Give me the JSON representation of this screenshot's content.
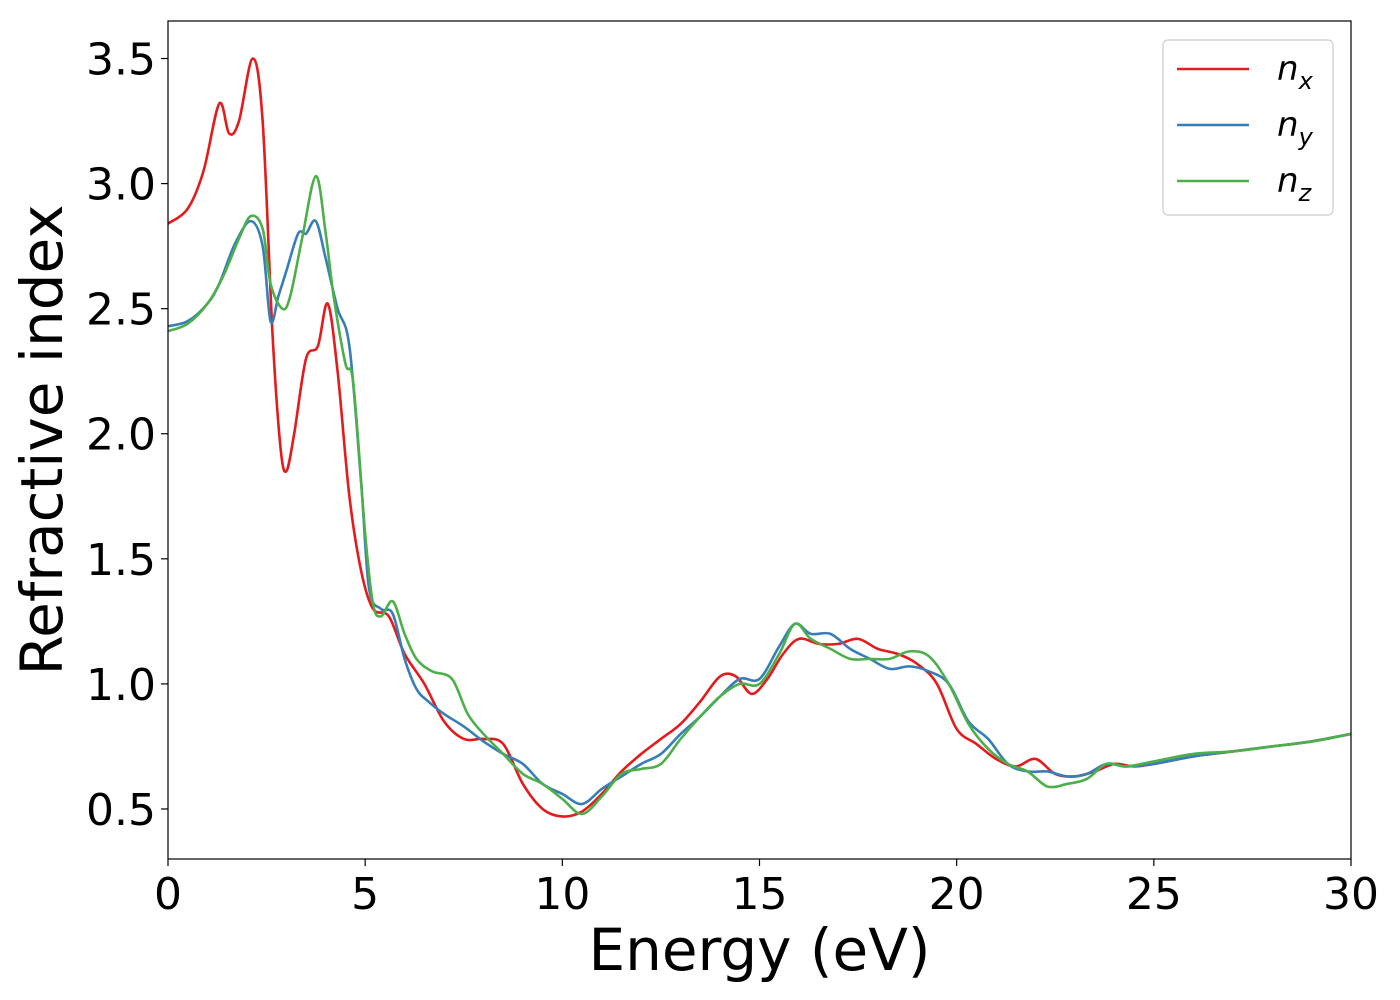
{
  "chart_data": {
    "type": "line",
    "title": "",
    "xlabel": "Energy (eV)",
    "ylabel": "Refractive index",
    "xlim": [
      0,
      30
    ],
    "ylim": [
      0.3,
      3.65
    ],
    "xticks": [
      0,
      5,
      10,
      15,
      20,
      25,
      30
    ],
    "xtick_labels": [
      "0",
      "5",
      "10",
      "15",
      "20",
      "25",
      "30"
    ],
    "yticks": [
      0.5,
      1.0,
      1.5,
      2.0,
      2.5,
      3.0,
      3.5
    ],
    "ytick_labels": [
      "0.5",
      "1.0",
      "1.5",
      "2.0",
      "2.5",
      "3.0",
      "3.5"
    ],
    "grid": false,
    "legend_position": "top-right",
    "series": [
      {
        "name": "n_x",
        "label_base": "n",
        "label_sub": "x",
        "color": "#e41a1c",
        "x": [
          0,
          0.5,
          0.9,
          1.3,
          1.55,
          1.8,
          2.15,
          2.4,
          2.65,
          2.85,
          3.0,
          3.2,
          3.5,
          3.8,
          4.05,
          4.3,
          4.6,
          4.9,
          5.2,
          5.6,
          6.0,
          6.5,
          7.0,
          7.5,
          8.0,
          8.5,
          9.0,
          9.5,
          10.0,
          10.5,
          11.0,
          11.5,
          12.0,
          12.5,
          13.0,
          13.5,
          14.0,
          14.4,
          14.8,
          15.2,
          15.6,
          16.0,
          16.5,
          17.0,
          17.5,
          18.0,
          18.5,
          19.0,
          19.5,
          20.0,
          20.5,
          21.0,
          21.5,
          22.0,
          22.5,
          23.0,
          23.5,
          24.0,
          24.5,
          25.0,
          26.0,
          27.0,
          28.0,
          29.0,
          30.0
        ],
        "y": [
          2.84,
          2.9,
          3.05,
          3.32,
          3.2,
          3.25,
          3.5,
          3.25,
          2.4,
          1.95,
          1.85,
          2.0,
          2.3,
          2.35,
          2.52,
          2.25,
          1.75,
          1.45,
          1.3,
          1.27,
          1.12,
          1.0,
          0.85,
          0.78,
          0.78,
          0.76,
          0.6,
          0.5,
          0.47,
          0.49,
          0.56,
          0.65,
          0.72,
          0.78,
          0.84,
          0.93,
          1.03,
          1.03,
          0.96,
          1.02,
          1.12,
          1.18,
          1.16,
          1.16,
          1.18,
          1.14,
          1.12,
          1.08,
          1.0,
          0.82,
          0.76,
          0.7,
          0.67,
          0.7,
          0.64,
          0.63,
          0.65,
          0.68,
          0.67,
          0.68,
          0.71,
          0.73,
          0.75,
          0.77,
          0.8
        ]
      },
      {
        "name": "n_y",
        "label_base": "n",
        "label_sub": "y",
        "color": "#377eb8",
        "x": [
          0,
          0.5,
          1.0,
          1.3,
          1.7,
          2.1,
          2.4,
          2.6,
          2.8,
          3.0,
          3.3,
          3.5,
          3.75,
          4.0,
          4.3,
          4.6,
          4.9,
          5.1,
          5.4,
          5.7,
          6.0,
          6.3,
          6.6,
          7.0,
          7.5,
          8.0,
          8.5,
          9.0,
          9.5,
          10.0,
          10.5,
          11.0,
          11.5,
          12.0,
          12.5,
          13.0,
          13.5,
          14.0,
          14.5,
          15.0,
          15.5,
          15.9,
          16.3,
          16.8,
          17.3,
          17.8,
          18.3,
          18.8,
          19.3,
          19.8,
          20.3,
          20.8,
          21.3,
          21.8,
          22.3,
          22.8,
          23.3,
          23.8,
          24.3,
          25.0,
          26.0,
          27.0,
          28.0,
          29.0,
          30.0
        ],
        "y": [
          2.43,
          2.45,
          2.52,
          2.6,
          2.76,
          2.85,
          2.75,
          2.45,
          2.55,
          2.65,
          2.8,
          2.8,
          2.85,
          2.7,
          2.5,
          2.35,
          1.8,
          1.38,
          1.3,
          1.28,
          1.1,
          0.98,
          0.93,
          0.88,
          0.83,
          0.77,
          0.72,
          0.68,
          0.6,
          0.56,
          0.52,
          0.58,
          0.63,
          0.68,
          0.72,
          0.8,
          0.87,
          0.95,
          1.02,
          1.02,
          1.15,
          1.24,
          1.2,
          1.2,
          1.14,
          1.1,
          1.06,
          1.07,
          1.05,
          1.0,
          0.85,
          0.78,
          0.68,
          0.65,
          0.65,
          0.63,
          0.64,
          0.68,
          0.67,
          0.68,
          0.71,
          0.73,
          0.75,
          0.77,
          0.8
        ]
      },
      {
        "name": "n_z",
        "label_base": "n",
        "label_sub": "z",
        "color": "#4daf4a",
        "x": [
          0,
          0.5,
          1.0,
          1.4,
          1.8,
          2.1,
          2.4,
          2.6,
          2.9,
          3.1,
          3.4,
          3.75,
          4.0,
          4.2,
          4.5,
          4.7,
          5.0,
          5.2,
          5.4,
          5.7,
          6.0,
          6.3,
          6.7,
          7.2,
          7.6,
          8.0,
          8.5,
          9.0,
          9.5,
          10.0,
          10.5,
          11.0,
          11.5,
          12.0,
          12.5,
          13.0,
          13.5,
          14.0,
          14.5,
          15.0,
          15.5,
          15.9,
          16.3,
          16.8,
          17.3,
          17.8,
          18.3,
          18.8,
          19.3,
          19.8,
          20.3,
          20.8,
          21.3,
          21.8,
          22.3,
          22.8,
          23.3,
          23.8,
          24.3,
          25.0,
          26.0,
          27.0,
          28.0,
          29.0,
          30.0
        ],
        "y": [
          2.41,
          2.44,
          2.52,
          2.63,
          2.78,
          2.87,
          2.82,
          2.6,
          2.5,
          2.55,
          2.78,
          3.03,
          2.8,
          2.55,
          2.28,
          2.2,
          1.6,
          1.32,
          1.27,
          1.33,
          1.2,
          1.1,
          1.05,
          1.02,
          0.88,
          0.8,
          0.72,
          0.64,
          0.6,
          0.54,
          0.48,
          0.55,
          0.64,
          0.66,
          0.68,
          0.78,
          0.87,
          0.95,
          1.0,
          1.0,
          1.12,
          1.24,
          1.18,
          1.14,
          1.1,
          1.1,
          1.1,
          1.13,
          1.11,
          1.0,
          0.84,
          0.74,
          0.68,
          0.65,
          0.59,
          0.6,
          0.62,
          0.68,
          0.67,
          0.69,
          0.72,
          0.73,
          0.75,
          0.77,
          0.8
        ]
      }
    ]
  }
}
